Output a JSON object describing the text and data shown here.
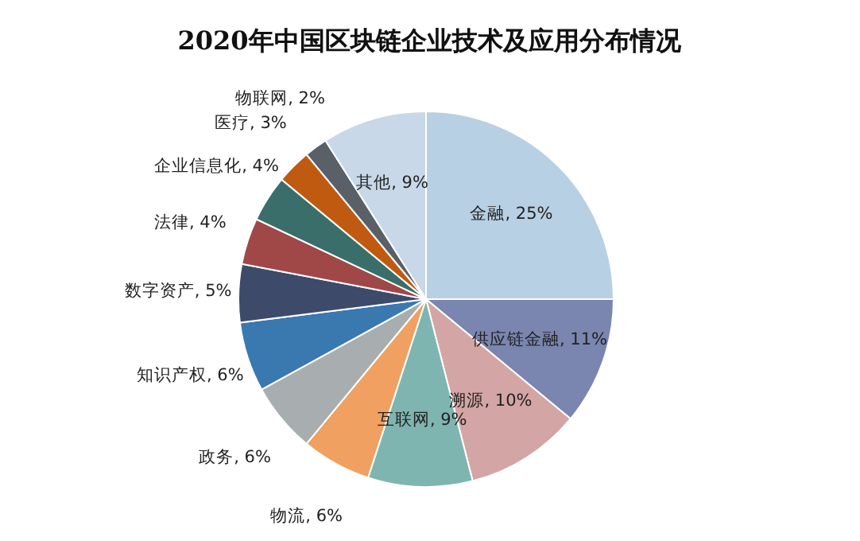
{
  "chart_data": {
    "type": "pie",
    "title": "2020年中国区块链企业技术及应用分布情况",
    "categories": [
      "金融",
      "供应链金融",
      "溯源",
      "互联网",
      "物流",
      "政务",
      "知识产权",
      "数字资产",
      "法律",
      "企业信息化",
      "医疗",
      "物联网",
      "其他"
    ],
    "values": [
      25,
      11,
      10,
      9,
      6,
      6,
      6,
      5,
      4,
      4,
      3,
      2,
      9
    ],
    "value_labels": [
      "25%",
      "11%",
      "10%",
      "9%",
      "6%",
      "6%",
      "6%",
      "5%",
      "4%",
      "4%",
      "3%",
      "2%",
      "9%"
    ],
    "colors": [
      "#b8d0e3",
      "#7a86b0",
      "#d4a5a5",
      "#7fb5b0",
      "#f0a060",
      "#a8aeb0",
      "#3a78b0",
      "#3d4a6a",
      "#a04848",
      "#3a6e6a",
      "#c05a10",
      "#5a6068",
      "#c8d8e8"
    ]
  }
}
